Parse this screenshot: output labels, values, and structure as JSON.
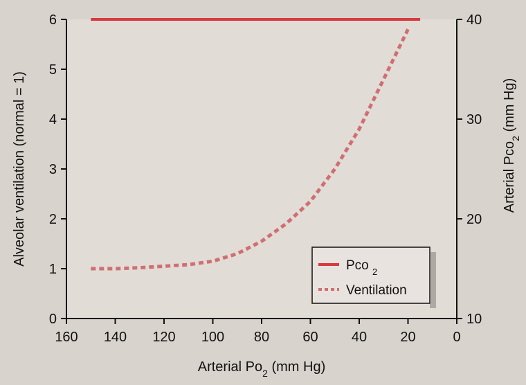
{
  "chart_data": {
    "type": "line",
    "xlabel": "Arterial P​o₂ (mm Hg)",
    "xlabel_main": "Arterial Po",
    "xlabel_sub": "2",
    "xlabel_suffix": " (mm Hg)",
    "ylabel_left": "Alveolar ventilation (normal = 1)",
    "ylabel_right_main": "Arterial Pco",
    "ylabel_right_sub": "2",
    "ylabel_right_suffix": " (mm Hg)",
    "xlim": [
      160,
      0
    ],
    "ylim_left": [
      0,
      6
    ],
    "ylim_right": [
      10,
      40
    ],
    "x_ticks": [
      "160",
      "140",
      "120",
      "100",
      "80",
      "60",
      "40",
      "20",
      "0"
    ],
    "y_left_ticks": [
      "0",
      "1",
      "2",
      "3",
      "4",
      "5",
      "6"
    ],
    "y_right_ticks": [
      "10",
      "20",
      "30",
      "40"
    ],
    "legend": {
      "position": "bottom-right",
      "entries": [
        {
          "label_main": "Pco",
          "label_sub": "2",
          "style": "solid",
          "color": "#d63a3f"
        },
        {
          "label_main": "Ventilation",
          "label_sub": "",
          "style": "dashed",
          "color": "#cf6f73"
        }
      ]
    },
    "series": [
      {
        "name": "Pco2",
        "axis": "right",
        "color": "#d63a3f",
        "style": "solid",
        "x": [
          150,
          125,
          100,
          75,
          50,
          25,
          15
        ],
        "y": [
          40,
          40,
          40,
          40,
          40,
          40,
          40
        ]
      },
      {
        "name": "Ventilation",
        "axis": "left",
        "color": "#cf6f73",
        "style": "dashed",
        "x": [
          150,
          140,
          130,
          120,
          110,
          100,
          90,
          80,
          70,
          60,
          50,
          40,
          30,
          20
        ],
        "y": [
          1.0,
          1.0,
          1.02,
          1.05,
          1.08,
          1.15,
          1.3,
          1.55,
          1.9,
          2.35,
          3.0,
          3.8,
          4.8,
          5.8
        ]
      }
    ]
  }
}
